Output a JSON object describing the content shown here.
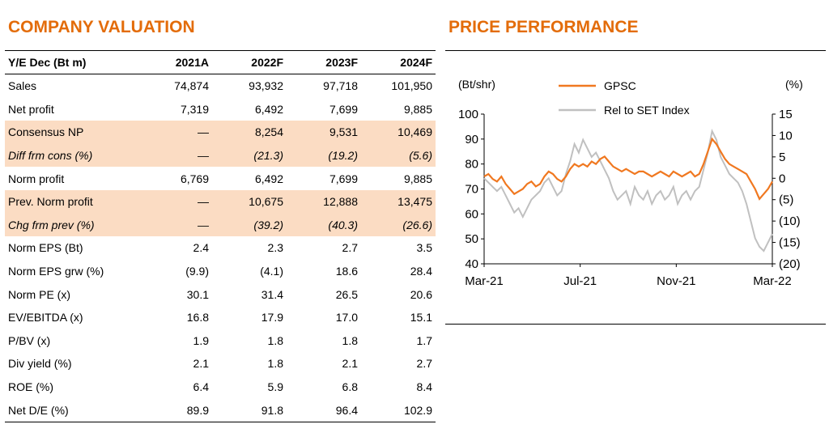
{
  "valuation": {
    "title": "COMPANY VALUATION",
    "header": [
      "Y/E Dec (Bt m)",
      "2021A",
      "2022F",
      "2023F",
      "2024F"
    ],
    "rows": [
      {
        "label": "Sales",
        "values": [
          "74,874",
          "93,932",
          "97,718",
          "101,950"
        ]
      },
      {
        "label": "Net profit",
        "values": [
          "7,319",
          "6,492",
          "7,699",
          "9,885"
        ]
      },
      {
        "label": "Consensus NP",
        "values": [
          "—",
          "8,254",
          "9,531",
          "10,469"
        ]
      },
      {
        "label": "Diff frm cons (%)",
        "values": [
          "—",
          "(21.3)",
          "(19.2)",
          "(5.6)"
        ]
      },
      {
        "label": "Norm profit",
        "values": [
          "6,769",
          "6,492",
          "7,699",
          "9,885"
        ]
      },
      {
        "label": "Prev. Norm profit",
        "values": [
          "—",
          "10,675",
          "12,888",
          "13,475"
        ]
      },
      {
        "label": "Chg frm prev (%)",
        "values": [
          "—",
          "(39.2)",
          "(40.3)",
          "(26.6)"
        ]
      },
      {
        "label": "Norm EPS (Bt)",
        "values": [
          "2.4",
          "2.3",
          "2.7",
          "3.5"
        ]
      },
      {
        "label": "Norm EPS grw (%)",
        "values": [
          "(9.9)",
          "(4.1)",
          "18.6",
          "28.4"
        ]
      },
      {
        "label": "Norm PE (x)",
        "values": [
          "30.1",
          "31.4",
          "26.5",
          "20.6"
        ]
      },
      {
        "label": "EV/EBITDA (x)",
        "values": [
          "16.8",
          "17.9",
          "17.0",
          "15.1"
        ]
      },
      {
        "label": "P/BV (x)",
        "values": [
          "1.9",
          "1.8",
          "1.8",
          "1.7"
        ]
      },
      {
        "label": "Div yield (%)",
        "values": [
          "2.1",
          "1.8",
          "2.1",
          "2.7"
        ]
      },
      {
        "label": "ROE (%)",
        "values": [
          "6.4",
          "5.9",
          "6.8",
          "8.4"
        ]
      },
      {
        "label": "Net D/E (%)",
        "values": [
          "89.9",
          "91.8",
          "96.4",
          "102.9"
        ]
      }
    ]
  },
  "performance": {
    "title": "PRICE PERFORMANCE"
  },
  "chart_data": {
    "type": "line",
    "left_unit": "(Bt/shr)",
    "right_unit": "(%)",
    "left_ylim": [
      40,
      100
    ],
    "left_ticks": [
      "100",
      "90",
      "80",
      "70",
      "60",
      "50",
      "40"
    ],
    "right_ylim": [
      -20,
      15
    ],
    "right_ticks": [
      "15",
      "10",
      "5",
      "0",
      "(5)",
      "(10)",
      "(15)",
      "(20)"
    ],
    "x_ticks": [
      "Mar-21",
      "Jul-21",
      "Nov-21",
      "Mar-22"
    ],
    "x_range": [
      "Mar-21",
      "Mar-22"
    ],
    "grid": false,
    "legend_position": "top",
    "series": [
      {
        "name": "GPSC",
        "axis": "left",
        "color": "#f07820",
        "values": [
          75,
          76,
          74,
          73,
          75,
          72,
          70,
          68,
          69,
          70,
          72,
          73,
          71,
          72,
          75,
          77,
          76,
          74,
          73,
          75,
          78,
          80,
          79,
          80,
          79,
          81,
          80,
          82,
          83,
          81,
          79,
          78,
          77,
          78,
          77,
          76,
          77,
          77,
          76,
          75,
          76,
          77,
          76,
          75,
          77,
          76,
          75,
          76,
          77,
          75,
          76,
          80,
          85,
          90,
          88,
          85,
          82,
          80,
          79,
          78,
          77,
          76,
          73,
          70,
          66,
          68,
          70,
          73
        ]
      },
      {
        "name": "Rel to SET Index",
        "axis": "right",
        "color": "#c0c0c0",
        "values": [
          0,
          -1,
          -2,
          -3,
          -2,
          -4,
          -6,
          -8,
          -7,
          -9,
          -7,
          -5,
          -4,
          -3,
          -1,
          0,
          -2,
          -4,
          -3,
          1,
          4,
          8,
          6,
          9,
          7,
          5,
          6,
          4,
          2,
          0,
          -3,
          -5,
          -4,
          -3,
          -6,
          -2,
          -4,
          -5,
          -3,
          -6,
          -4,
          -3,
          -5,
          -4,
          -2,
          -6,
          -4,
          -3,
          -5,
          -3,
          -2,
          2,
          6,
          11,
          9,
          5,
          3,
          1,
          0,
          -1,
          -3,
          -6,
          -10,
          -14,
          -16,
          -17,
          -15,
          -13
        ]
      }
    ]
  }
}
